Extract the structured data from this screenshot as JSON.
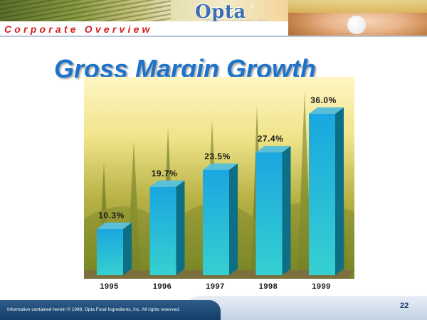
{
  "header": {
    "section_title": "Corporate Overview",
    "logo": {
      "name": "Opta",
      "registered_mark": "®",
      "subtitle": "Food Ingredients, Inc."
    }
  },
  "footer": {
    "copyright": "Information contained herein © 1998, Opta Food Ingredients, Inc. All rights reserved.",
    "page_number": "22"
  },
  "colors": {
    "title": "#1d73c9",
    "section_title": "#d31f1f",
    "bar_front_top": "#1aa6e0",
    "bar_front_bottom": "#36d0d0",
    "bar_side": "#0d6f86",
    "bar_top": "#5ac0d8"
  },
  "chart_data": {
    "type": "bar",
    "title": "Gross Margin Growth",
    "categories": [
      "1995",
      "1996",
      "1997",
      "1998",
      "1999"
    ],
    "values": [
      10.3,
      19.7,
      23.5,
      27.4,
      36.0
    ],
    "labels": [
      "10.3%",
      "19.7%",
      "23.5%",
      "27.4%",
      "36.0%"
    ],
    "xlabel": "",
    "ylabel": "",
    "ylim": [
      0,
      36.0
    ],
    "grid": false,
    "legend": "none"
  }
}
